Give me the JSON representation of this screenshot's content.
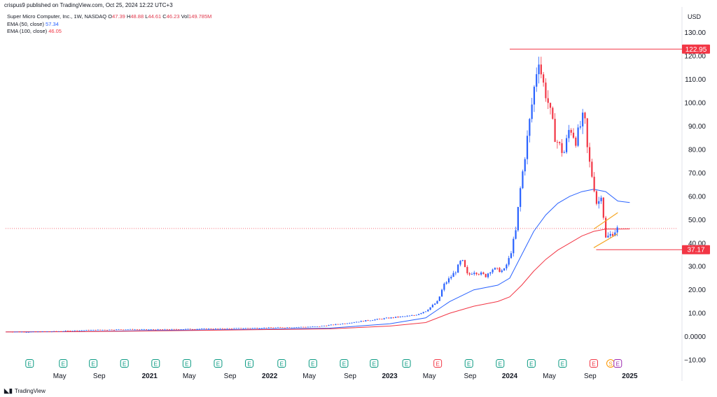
{
  "header": {
    "published_line": "crispus9 published on TradingView.com, Oct 25, 2024 12:22 UTC+3"
  },
  "legend": {
    "symbol_line": "Super Micro Computer, Inc., 1W, NASDAQ",
    "o_label": "O",
    "o_value": "47.39",
    "h_label": "H",
    "h_value": "48.88",
    "l_label": "L",
    "l_value": "44.61",
    "c_label": "C",
    "c_value": "46.23",
    "vol_label": "Vol",
    "vol_value": "149.785M",
    "ema50_label": "EMA (50, close)",
    "ema50_value": "57.34",
    "ema100_label": "EMA (100, close)",
    "ema100_value": "46.05"
  },
  "currency": "USD",
  "footer": {
    "brand": "TradingView"
  },
  "colors": {
    "up": "#2962ff",
    "down": "#f23645",
    "ema50": "#2962ff",
    "ema100": "#f23645",
    "level_line": "#f23645",
    "channel": "#f5a623",
    "earnings_green": "#089981",
    "earnings_red": "#f23645",
    "split_orange": "#ff9800",
    "earnings_purple": "#9c27b0"
  },
  "chart_data": {
    "type": "candlestick",
    "interval": "1W",
    "y_axis": {
      "ticks": [
        "130.00",
        "120.00",
        "110.00",
        "100.00",
        "90.00",
        "80.00",
        "70.00",
        "60.00",
        "50.00",
        "40.00",
        "30.00",
        "20.00",
        "10.00",
        "0.0000",
        "−10.00"
      ],
      "tick_values": [
        130,
        120,
        110,
        100,
        90,
        80,
        70,
        60,
        50,
        40,
        30,
        20,
        10,
        0,
        -10
      ],
      "ylim": [
        -10,
        135
      ]
    },
    "x_axis": {
      "labels": [
        {
          "text": "May",
          "t": 0.25,
          "bold": false
        },
        {
          "text": "Sep",
          "t": 0.58,
          "bold": false
        },
        {
          "text": "2021",
          "t": 1.0,
          "bold": true
        },
        {
          "text": "May",
          "t": 1.33,
          "bold": false
        },
        {
          "text": "Sep",
          "t": 1.67,
          "bold": false
        },
        {
          "text": "2022",
          "t": 2.0,
          "bold": true
        },
        {
          "text": "May",
          "t": 2.33,
          "bold": false
        },
        {
          "text": "Sep",
          "t": 2.67,
          "bold": false
        },
        {
          "text": "2023",
          "t": 3.0,
          "bold": true
        },
        {
          "text": "May",
          "t": 3.33,
          "bold": false
        },
        {
          "text": "Sep",
          "t": 3.67,
          "bold": false
        },
        {
          "text": "2024",
          "t": 4.0,
          "bold": true
        },
        {
          "text": "May",
          "t": 4.33,
          "bold": false
        },
        {
          "text": "Sep",
          "t": 4.67,
          "bold": false
        },
        {
          "text": "2025",
          "t": 5.0,
          "bold": true
        }
      ]
    },
    "price_labels": [
      {
        "text": "122.95",
        "value": 122.95
      },
      {
        "text": "37.17",
        "value": 37.17
      }
    ],
    "current_price": 46.23,
    "horizontal_levels": [
      122.95,
      37.17
    ],
    "channel": {
      "upper": [
        [
          4.7,
          46
        ],
        [
          4.9,
          53
        ]
      ],
      "lower": [
        [
          4.7,
          38
        ],
        [
          4.9,
          44
        ]
      ]
    },
    "events": [
      {
        "text": "E",
        "t": 0.0,
        "kind": "earnings"
      },
      {
        "text": "E",
        "t": 0.28,
        "kind": "earnings"
      },
      {
        "text": "E",
        "t": 0.53,
        "kind": "earnings"
      },
      {
        "text": "E",
        "t": 0.79,
        "kind": "earnings"
      },
      {
        "text": "E",
        "t": 1.05,
        "kind": "earnings"
      },
      {
        "text": "E",
        "t": 1.31,
        "kind": "earnings"
      },
      {
        "text": "E",
        "t": 1.57,
        "kind": "earnings"
      },
      {
        "text": "E",
        "t": 1.83,
        "kind": "earnings"
      },
      {
        "text": "E",
        "t": 2.1,
        "kind": "earnings"
      },
      {
        "text": "E",
        "t": 2.36,
        "kind": "earnings"
      },
      {
        "text": "E",
        "t": 2.62,
        "kind": "earnings"
      },
      {
        "text": "E",
        "t": 2.87,
        "kind": "earnings"
      },
      {
        "text": "E",
        "t": 3.14,
        "kind": "earnings"
      },
      {
        "text": "E",
        "t": 3.4,
        "kind": "earnings_red"
      },
      {
        "text": "E",
        "t": 3.66,
        "kind": "earnings"
      },
      {
        "text": "E",
        "t": 3.92,
        "kind": "earnings"
      },
      {
        "text": "E",
        "t": 4.18,
        "kind": "earnings"
      },
      {
        "text": "E",
        "t": 4.44,
        "kind": "earnings"
      },
      {
        "text": "E",
        "t": 4.7,
        "kind": "earnings_red"
      },
      {
        "text": "S",
        "t": 4.84,
        "kind": "split"
      },
      {
        "text": "E",
        "t": 4.9,
        "kind": "earnings_purple"
      }
    ],
    "x_start": -0.2,
    "x_end": 5.4,
    "series": [
      {
        "name": "price",
        "points": [
          [
            -0.2,
            2.1
          ],
          [
            0.0,
            2.0
          ],
          [
            0.2,
            2.2
          ],
          [
            0.4,
            2.6
          ],
          [
            0.6,
            2.9
          ],
          [
            0.8,
            3.1
          ],
          [
            1.0,
            3.0
          ],
          [
            1.2,
            3.1
          ],
          [
            1.4,
            3.3
          ],
          [
            1.6,
            3.4
          ],
          [
            1.8,
            3.6
          ],
          [
            2.0,
            3.8
          ],
          [
            2.2,
            4.0
          ],
          [
            2.4,
            4.3
          ],
          [
            2.6,
            5.5
          ],
          [
            2.8,
            6.8
          ],
          [
            3.0,
            8.0
          ],
          [
            3.2,
            9.0
          ],
          [
            3.3,
            11.0
          ],
          [
            3.4,
            15.0
          ],
          [
            3.45,
            22.0
          ],
          [
            3.55,
            28.0
          ],
          [
            3.6,
            33.0
          ],
          [
            3.65,
            26.0
          ],
          [
            3.7,
            28.0
          ],
          [
            3.8,
            26.0
          ],
          [
            3.85,
            29.0
          ],
          [
            3.95,
            28.0
          ],
          [
            4.0,
            34.0
          ],
          [
            4.05,
            45.0
          ],
          [
            4.08,
            60.0
          ],
          [
            4.12,
            75.0
          ],
          [
            4.16,
            90.0
          ],
          [
            4.2,
            105.0
          ],
          [
            4.24,
            120.0
          ],
          [
            4.27,
            110.0
          ],
          [
            4.32,
            100.0
          ],
          [
            4.38,
            85.0
          ],
          [
            4.45,
            78.0
          ],
          [
            4.5,
            90.0
          ],
          [
            4.55,
            84.0
          ],
          [
            4.62,
            95.0
          ],
          [
            4.65,
            78.0
          ],
          [
            4.7,
            65.0
          ],
          [
            4.73,
            55.0
          ],
          [
            4.76,
            62.0
          ],
          [
            4.78,
            52.0
          ],
          [
            4.8,
            42.0
          ],
          [
            4.85,
            44.0
          ],
          [
            4.9,
            46.23
          ]
        ]
      },
      {
        "name": "EMA (50, close)",
        "points": [
          [
            -0.2,
            2.0
          ],
          [
            0.5,
            2.2
          ],
          [
            1.0,
            2.6
          ],
          [
            1.5,
            2.9
          ],
          [
            2.0,
            3.2
          ],
          [
            2.5,
            3.6
          ],
          [
            3.0,
            5.5
          ],
          [
            3.3,
            8.0
          ],
          [
            3.5,
            15.0
          ],
          [
            3.7,
            20.0
          ],
          [
            3.9,
            22.0
          ],
          [
            4.0,
            25.0
          ],
          [
            4.1,
            35.0
          ],
          [
            4.2,
            45.0
          ],
          [
            4.3,
            52.0
          ],
          [
            4.4,
            57.0
          ],
          [
            4.5,
            60.0
          ],
          [
            4.6,
            62.0
          ],
          [
            4.7,
            63.0
          ],
          [
            4.8,
            62.0
          ],
          [
            4.9,
            58.0
          ],
          [
            5.0,
            57.34
          ]
        ]
      },
      {
        "name": "EMA (100, close)",
        "points": [
          [
            -0.2,
            2.0
          ],
          [
            0.5,
            2.1
          ],
          [
            1.0,
            2.4
          ],
          [
            1.5,
            2.7
          ],
          [
            2.0,
            3.0
          ],
          [
            2.5,
            3.3
          ],
          [
            3.0,
            4.5
          ],
          [
            3.3,
            6.0
          ],
          [
            3.5,
            10.0
          ],
          [
            3.7,
            13.0
          ],
          [
            3.9,
            15.0
          ],
          [
            4.0,
            17.0
          ],
          [
            4.1,
            22.0
          ],
          [
            4.2,
            28.0
          ],
          [
            4.3,
            33.0
          ],
          [
            4.4,
            37.0
          ],
          [
            4.5,
            40.0
          ],
          [
            4.6,
            43.0
          ],
          [
            4.7,
            45.0
          ],
          [
            4.8,
            46.0
          ],
          [
            4.9,
            46.0
          ],
          [
            5.0,
            46.05
          ]
        ]
      }
    ]
  }
}
